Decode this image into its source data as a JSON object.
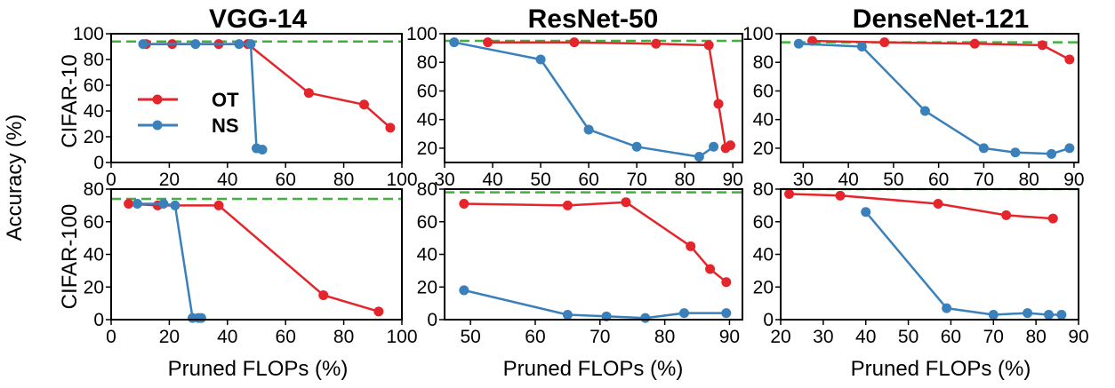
{
  "figure": {
    "column_titles": [
      "VGG-14",
      "ResNet-50",
      "DenseNet-121"
    ],
    "row_labels": [
      "CIFAR-10",
      "CIFAR-100"
    ],
    "shared_ylabel": "Accuracy (%)",
    "shared_xlabel": "Pruned FLOPs (%)",
    "legend": [
      {
        "label": "OT",
        "color": "#e4262c"
      },
      {
        "label": "NS",
        "color": "#3a80bb"
      }
    ],
    "baseline_color": "#3db33a"
  },
  "chart_data": [
    {
      "type": "line",
      "title": "VGG-14",
      "row": "CIFAR-10",
      "xlabel": "",
      "ylabel": "",
      "xlim": [
        0,
        100
      ],
      "ylim": [
        0,
        100
      ],
      "xticks": [
        0,
        20,
        40,
        60,
        80,
        100
      ],
      "yticks": [
        0,
        20,
        40,
        60,
        80,
        100
      ],
      "baseline": 94,
      "legend": "upper-left",
      "series": [
        {
          "name": "OT",
          "color": "#e4262c",
          "x": [
            12,
            21,
            37,
            47,
            68,
            87,
            96
          ],
          "y": [
            92,
            92,
            92,
            92,
            54,
            45,
            27
          ]
        },
        {
          "name": "NS",
          "color": "#3a80bb",
          "x": [
            11,
            29,
            44,
            48,
            50,
            52
          ],
          "y": [
            92,
            92,
            92,
            92,
            11,
            10
          ]
        }
      ]
    },
    {
      "type": "line",
      "title": "ResNet-50",
      "row": "CIFAR-10",
      "xlabel": "",
      "ylabel": "",
      "xlim": [
        30,
        92
      ],
      "ylim": [
        10,
        100
      ],
      "xticks": [
        30,
        40,
        50,
        60,
        70,
        80,
        90
      ],
      "yticks": [
        20,
        40,
        60,
        80,
        100
      ],
      "baseline": 95,
      "series": [
        {
          "name": "OT",
          "color": "#e4262c",
          "x": [
            39,
            57,
            74,
            85,
            87,
            88.5,
            89.5
          ],
          "y": [
            94,
            94,
            93,
            92,
            51,
            20,
            22
          ]
        },
        {
          "name": "NS",
          "color": "#3a80bb",
          "x": [
            32,
            50,
            60,
            70,
            83,
            86
          ],
          "y": [
            94,
            82,
            33,
            21,
            14,
            21
          ]
        }
      ]
    },
    {
      "type": "line",
      "title": "DenseNet-121",
      "row": "CIFAR-10",
      "xlabel": "",
      "ylabel": "",
      "xlim": [
        25,
        91
      ],
      "ylim": [
        10,
        100
      ],
      "xticks": [
        30,
        40,
        50,
        60,
        70,
        80,
        90
      ],
      "yticks": [
        20,
        40,
        60,
        80,
        100
      ],
      "baseline": 94,
      "series": [
        {
          "name": "OT",
          "color": "#e4262c",
          "x": [
            32,
            48,
            68,
            83,
            89
          ],
          "y": [
            95,
            94,
            93,
            92,
            82
          ]
        },
        {
          "name": "NS",
          "color": "#3a80bb",
          "x": [
            29,
            43,
            57,
            70,
            77,
            85,
            89
          ],
          "y": [
            93,
            91,
            46,
            20,
            17,
            16,
            20
          ]
        }
      ]
    },
    {
      "type": "line",
      "title": "",
      "row": "CIFAR-100",
      "xlabel": "Pruned FLOPs (%)",
      "ylabel": "",
      "xlim": [
        0,
        100
      ],
      "ylim": [
        0,
        80
      ],
      "xticks": [
        0,
        20,
        40,
        60,
        80,
        100
      ],
      "yticks": [
        0,
        20,
        40,
        60,
        80
      ],
      "baseline": 74,
      "series": [
        {
          "name": "OT",
          "color": "#e4262c",
          "x": [
            6,
            16,
            37,
            73,
            92
          ],
          "y": [
            71,
            70,
            70,
            15,
            5
          ]
        },
        {
          "name": "NS",
          "color": "#3a80bb",
          "x": [
            9,
            18,
            22,
            28,
            30,
            31
          ],
          "y": [
            71,
            71,
            70,
            1,
            1,
            1
          ]
        }
      ]
    },
    {
      "type": "line",
      "title": "",
      "row": "CIFAR-100",
      "xlabel": "Pruned FLOPs (%)",
      "ylabel": "",
      "xlim": [
        46,
        92
      ],
      "ylim": [
        0,
        80
      ],
      "xticks": [
        50,
        60,
        70,
        80,
        90
      ],
      "yticks": [
        0,
        20,
        40,
        60,
        80
      ],
      "baseline": 78,
      "series": [
        {
          "name": "OT",
          "color": "#e4262c",
          "x": [
            49,
            65,
            74,
            84,
            87,
            89.5
          ],
          "y": [
            71,
            70,
            72,
            45,
            31,
            23
          ]
        },
        {
          "name": "NS",
          "color": "#3a80bb",
          "x": [
            49,
            65,
            71,
            77,
            83,
            89.5
          ],
          "y": [
            18,
            3,
            2,
            1,
            4,
            4
          ]
        }
      ]
    },
    {
      "type": "line",
      "title": "",
      "row": "CIFAR-100",
      "xlabel": "Pruned FLOPs (%)",
      "ylabel": "",
      "xlim": [
        20,
        90
      ],
      "ylim": [
        0,
        80
      ],
      "xticks": [
        20,
        30,
        40,
        50,
        60,
        70,
        80,
        90
      ],
      "yticks": [
        0,
        20,
        40,
        60,
        80
      ],
      "baseline": 80,
      "series": [
        {
          "name": "OT",
          "color": "#e4262c",
          "x": [
            22,
            34,
            57,
            73,
            84
          ],
          "y": [
            77,
            76,
            71,
            64,
            62
          ]
        },
        {
          "name": "NS",
          "color": "#3a80bb",
          "x": [
            40,
            59,
            70,
            78,
            83,
            86
          ],
          "y": [
            66,
            7,
            3,
            4,
            3,
            3
          ]
        }
      ]
    }
  ]
}
